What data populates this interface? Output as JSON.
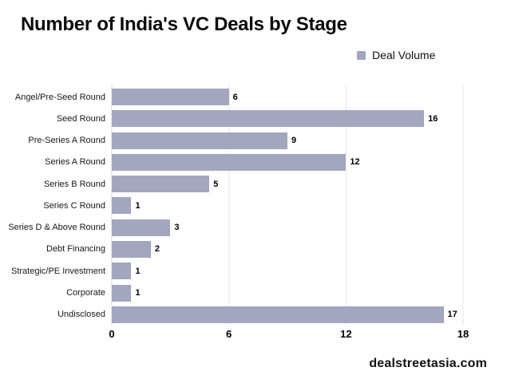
{
  "title": "Number of India's VC Deals by Stage",
  "legend": {
    "label": "Deal Volume"
  },
  "footer": {
    "brand": "dealstreetasia.com"
  },
  "colors": {
    "bar": "#a2a6be",
    "gridline": "#e5e5e8",
    "axis_line": "#d6d6da",
    "text": "#111111"
  },
  "chart_data": {
    "type": "bar",
    "orientation": "horizontal",
    "title": "Number of India's VC Deals by Stage",
    "legend_entries": [
      "Deal Volume"
    ],
    "legend_position": "top-right",
    "categories": [
      "Angel/Pre-Seed Round",
      "Seed Round",
      "Pre-Series A Round",
      "Series A Round",
      "Series B Round",
      "Series C Round",
      "Series D & Above Round",
      "Debt Financing",
      "Strategic/PE Investment",
      "Corporate",
      "Undisclosed"
    ],
    "values": [
      6,
      16,
      9,
      12,
      5,
      1,
      3,
      2,
      1,
      1,
      17
    ],
    "xlabel": "",
    "ylabel": "",
    "xlim": [
      0,
      18
    ],
    "xticks": [
      0,
      6,
      12,
      18
    ],
    "grid": true,
    "value_labels": true
  }
}
